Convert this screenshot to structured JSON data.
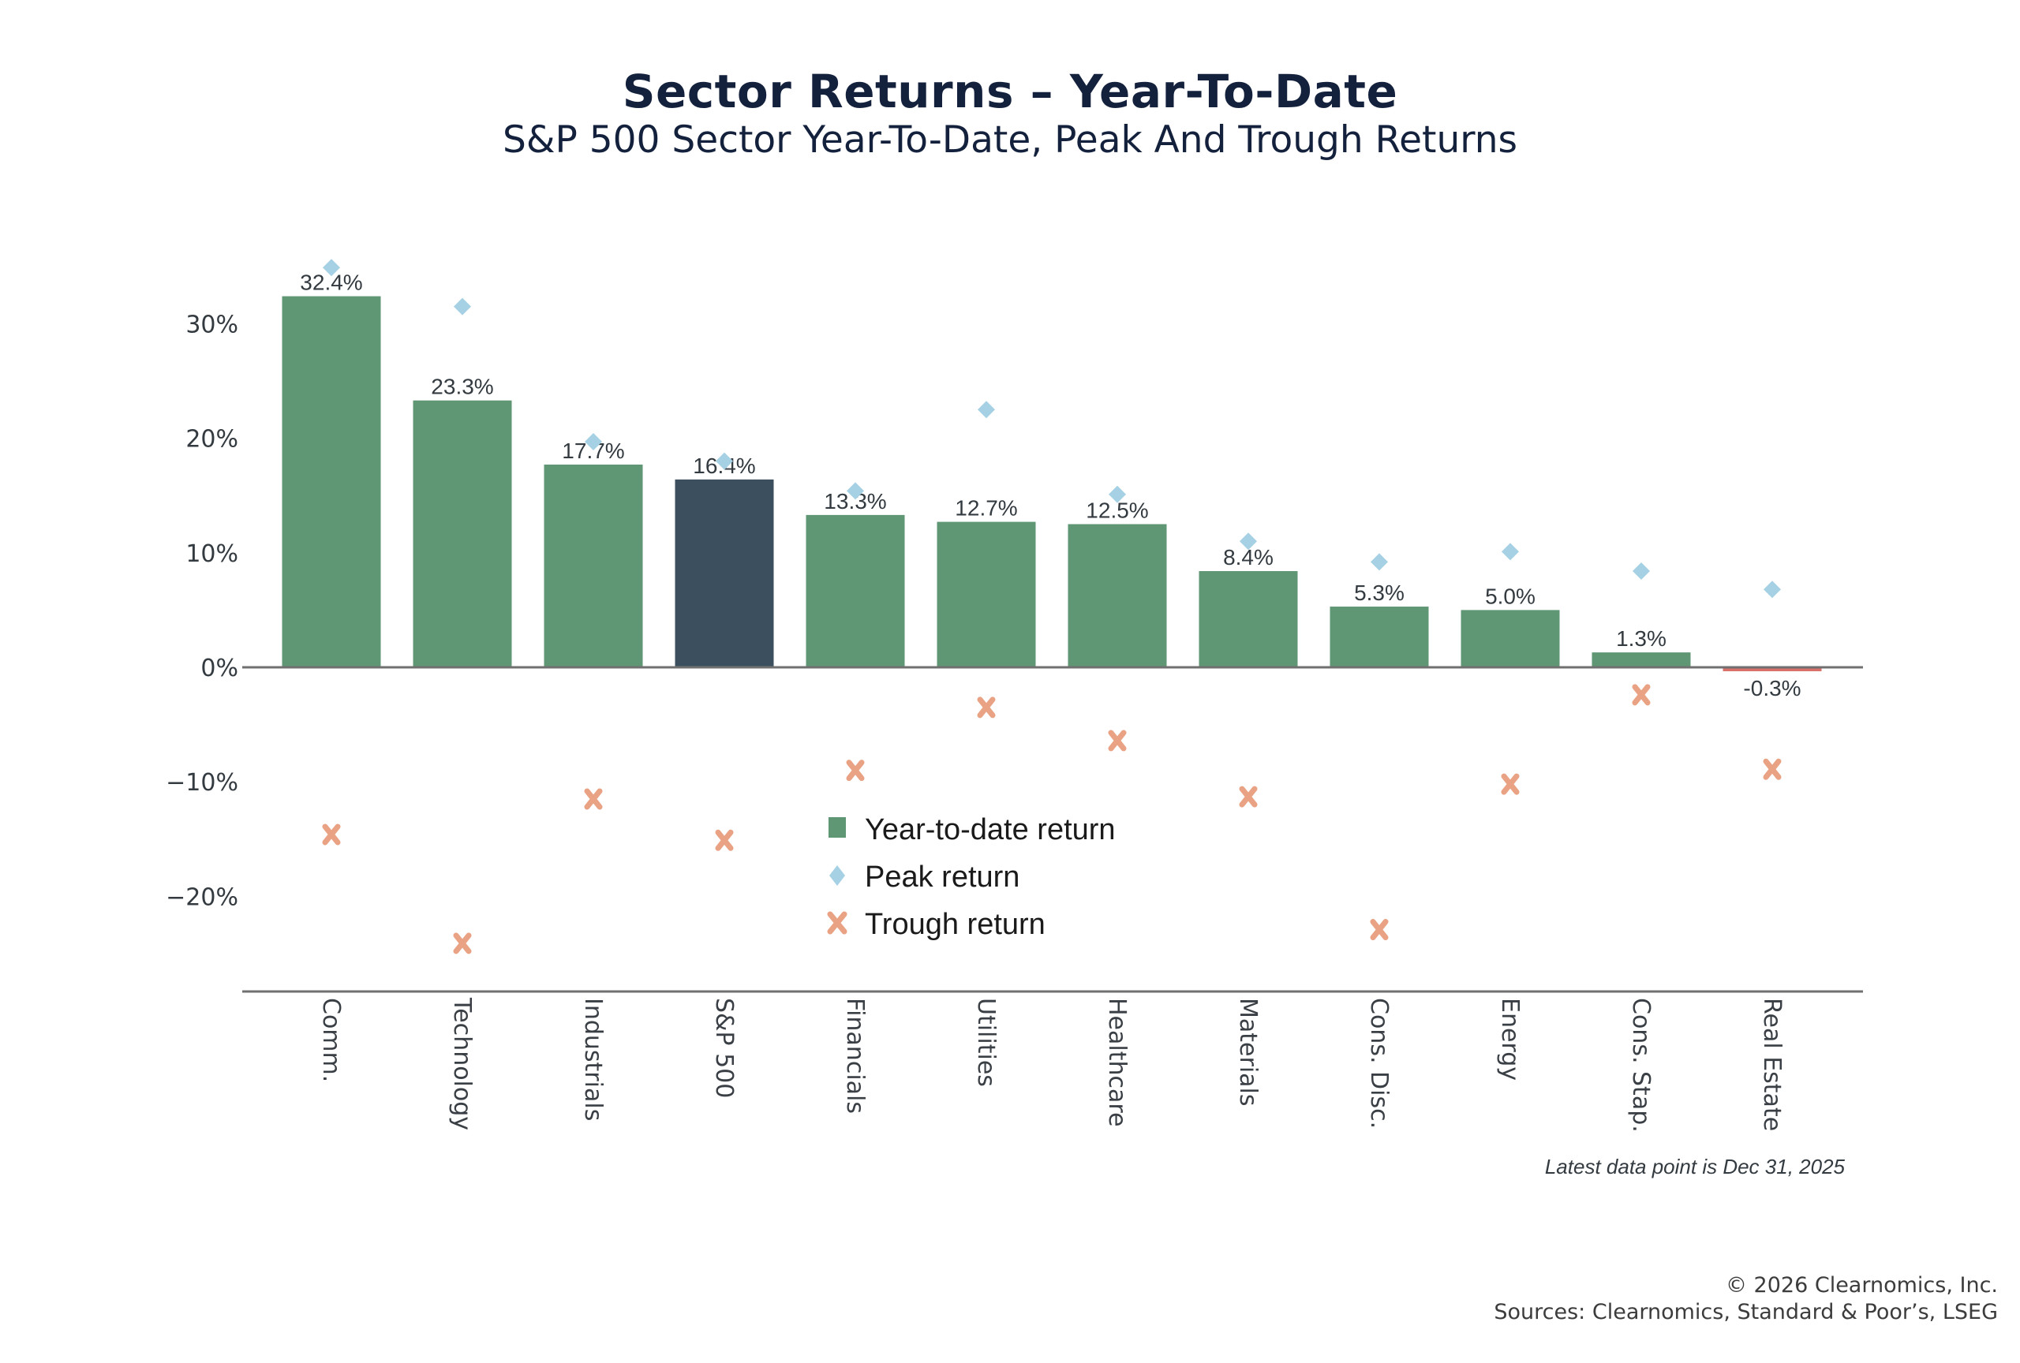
{
  "header": {
    "title": "Sector Returns – Year-To-Date",
    "subtitle": "S&P 500 Sector Year-To-Date, Peak And Trough Returns"
  },
  "chart_data": {
    "type": "bar",
    "title": "Sector Returns – Year-To-Date",
    "subtitle": "S&P 500 Sector Year-To-Date, Peak And Trough Returns",
    "xlabel": "",
    "ylabel": "",
    "ylim": [
      -28.5,
      36
    ],
    "yticks": [
      30,
      20,
      10,
      0,
      -10,
      -20
    ],
    "ytick_labels": [
      "30%",
      "20%",
      "10%",
      "0%",
      "−10%",
      "−20%"
    ],
    "grid": false,
    "legend_position": "center-bottom",
    "categories": [
      "Comm.",
      "Technology",
      "Industrials",
      "S&P 500",
      "Financials",
      "Utilities",
      "Healthcare",
      "Materials",
      "Cons. Disc.",
      "Energy",
      "Cons. Stap.",
      "Real Estate"
    ],
    "series": [
      {
        "name": "Year-to-date return",
        "type": "bar",
        "color": "#5f9673",
        "highlight_color": "#3c4f5e",
        "negative_color": "#d9716b",
        "highlight_category": "S&P 500",
        "values": [
          32.4,
          23.3,
          17.7,
          16.4,
          13.3,
          12.7,
          12.5,
          8.4,
          5.3,
          5.0,
          1.3,
          -0.3
        ],
        "labels": [
          "32.4%",
          "23.3%",
          "17.7%",
          "16.4%",
          "13.3%",
          "12.7%",
          "12.5%",
          "8.4%",
          "5.3%",
          "5.0%",
          "1.3%",
          "-0.3%"
        ]
      },
      {
        "name": "Peak return",
        "type": "scatter",
        "marker": "diamond",
        "color": "#a6d1e4",
        "values": [
          34.9,
          31.5,
          19.7,
          18.0,
          15.4,
          22.5,
          15.1,
          11.0,
          9.2,
          10.1,
          8.4,
          6.8
        ]
      },
      {
        "name": "Trough return",
        "type": "scatter",
        "marker": "x",
        "color": "#e9a283",
        "values": [
          -14.6,
          -24.1,
          -11.5,
          -15.1,
          -9.0,
          -3.5,
          -6.4,
          -11.3,
          -22.9,
          -10.2,
          -2.4,
          -8.9
        ]
      }
    ],
    "legend": [
      "Year-to-date return",
      "Peak return",
      "Trough return"
    ],
    "annotation": "Latest data point is Dec 31, 2025"
  },
  "footer": {
    "copyright": "© 2026 Clearnomics, Inc.",
    "sources": "Sources: Clearnomics, Standard & Poor’s, LSEG"
  }
}
